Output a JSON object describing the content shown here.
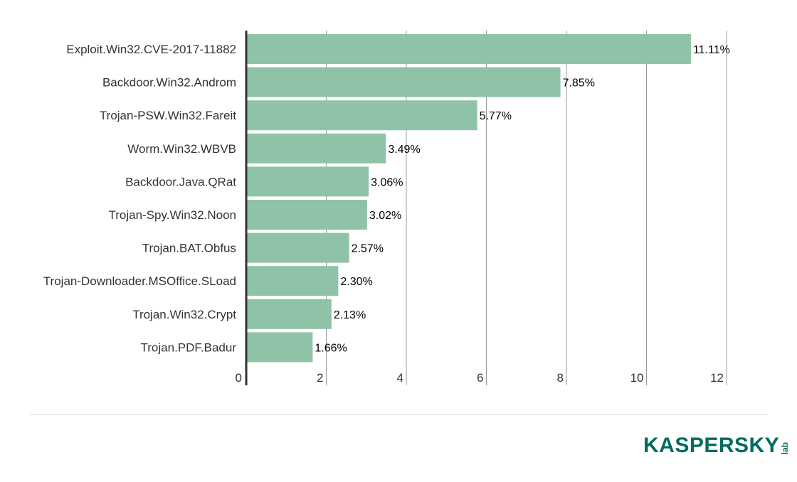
{
  "chart_data": {
    "type": "bar",
    "orientation": "horizontal",
    "categories": [
      "Exploit.Win32.CVE-2017-11882",
      "Backdoor.Win32.Androm",
      "Trojan-PSW.Win32.Fareit",
      "Worm.Win32.WBVB",
      "Backdoor.Java.QRat",
      "Trojan-Spy.Win32.Noon",
      "Trojan.BAT.Obfus",
      "Trojan-Downloader.MSOffice.SLoad",
      "Trojan.Win32.Crypt",
      "Trojan.PDF.Badur"
    ],
    "values": [
      11.11,
      7.85,
      5.77,
      3.49,
      3.06,
      3.02,
      2.57,
      2.3,
      2.13,
      1.66
    ],
    "data_labels": [
      "11.11%",
      "7.85%",
      "5.77%",
      "3.49%",
      "3.06%",
      "3.02%",
      "2.57%",
      "2.30%",
      "2.13%",
      "1.66%"
    ],
    "xticks": [
      "0",
      "2",
      "4",
      "6",
      "8",
      "10",
      "12"
    ],
    "xlim": [
      0,
      12
    ],
    "grid": true,
    "bar_color": "#8fc3a7",
    "title": "",
    "xlabel": "",
    "ylabel": ""
  },
  "brand": {
    "logo_text": "KASPERSKY",
    "logo_suffix": "lab",
    "color": "#006d5c"
  }
}
